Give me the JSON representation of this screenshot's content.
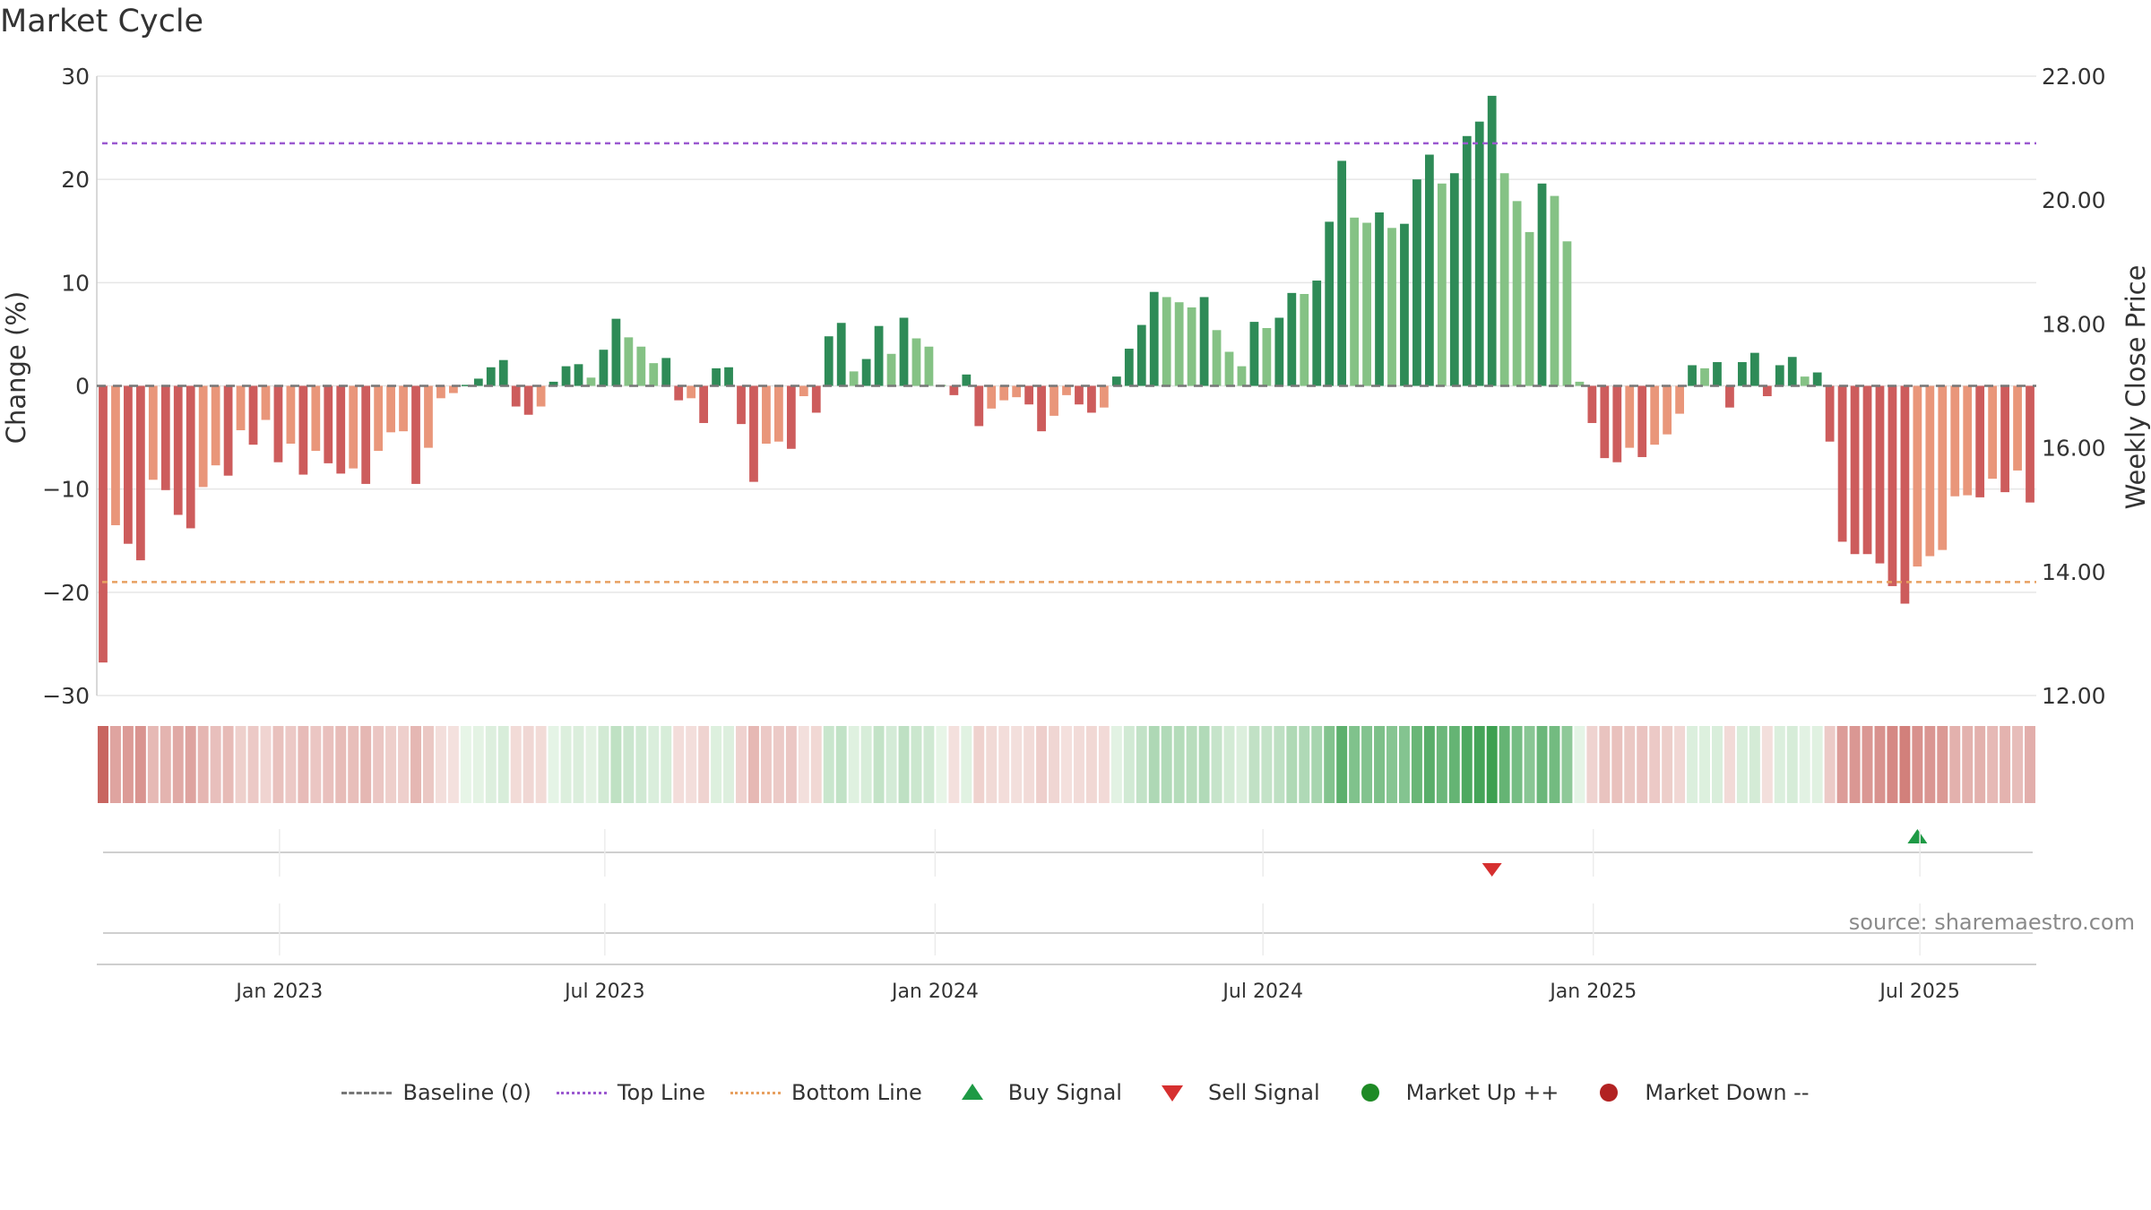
{
  "chart_data": {
    "type": "bar",
    "title": "Market Cycle",
    "ylabel": "Change (%)",
    "y2label": "Weekly Close Price",
    "ylim": [
      -30,
      30
    ],
    "y2lim": [
      12,
      22
    ],
    "yticks": [
      "30",
      "20",
      "10",
      "0",
      "−10",
      "−20",
      "−30"
    ],
    "y2ticks": [
      "22.00",
      "20.00",
      "18.00",
      "16.00",
      "14.00",
      "12.00"
    ],
    "xticks": [
      {
        "label": "Jan 2023",
        "index": 14.6
      },
      {
        "label": "Jul 2023",
        "index": 40.6
      },
      {
        "label": "Jan 2024",
        "index": 67.0
      },
      {
        "label": "Jul 2024",
        "index": 93.2
      },
      {
        "label": "Jan 2025",
        "index": 119.6
      },
      {
        "label": "Jul 2025",
        "index": 145.7
      }
    ],
    "top_line": 23.5,
    "bottom_line": -19.0,
    "values": [
      -26.8,
      -13.5,
      -15.3,
      -16.9,
      -9.1,
      -10.1,
      -12.5,
      -13.8,
      -9.8,
      -7.7,
      -8.7,
      -4.3,
      -5.7,
      -3.3,
      -7.4,
      -5.6,
      -8.6,
      -6.3,
      -7.5,
      -8.5,
      -8.0,
      -9.5,
      -6.3,
      -4.5,
      -4.4,
      -9.5,
      -6.0,
      -1.2,
      -0.7,
      0.1,
      0.7,
      1.8,
      2.5,
      -2.0,
      -2.8,
      -2.0,
      0.4,
      1.9,
      2.1,
      0.8,
      3.5,
      6.5,
      4.7,
      3.8,
      2.2,
      2.7,
      -1.4,
      -1.2,
      -3.6,
      1.7,
      1.8,
      -3.7,
      -9.3,
      -5.6,
      -5.4,
      -6.1,
      -1.0,
      -2.6,
      4.8,
      6.1,
      1.4,
      2.6,
      5.8,
      3.1,
      6.6,
      4.6,
      3.8,
      0.1,
      -0.9,
      1.1,
      -3.9,
      -2.2,
      -1.4,
      -1.1,
      -1.8,
      -4.4,
      -2.9,
      -0.9,
      -1.8,
      -2.6,
      -2.1,
      0.9,
      3.6,
      5.9,
      9.1,
      8.6,
      8.1,
      7.6,
      8.6,
      5.4,
      3.3,
      1.9,
      6.2,
      5.6,
      6.6,
      9.0,
      8.9,
      10.2,
      15.9,
      21.8,
      16.3,
      15.8,
      16.8,
      15.3,
      15.7,
      20.0,
      22.4,
      19.6,
      20.6,
      24.2,
      25.6,
      28.1,
      20.6,
      17.9,
      14.9,
      19.6,
      18.4,
      14.0,
      0.4,
      -3.6,
      -7.0,
      -7.4,
      -6.0,
      -6.9,
      -5.7,
      -4.7,
      -2.7,
      2.0,
      1.7,
      2.3,
      -2.1,
      2.3,
      3.2,
      -1.0,
      2.0,
      2.8,
      0.9,
      1.3,
      -5.4,
      -15.1,
      -16.3,
      -16.3,
      -17.2,
      -19.4,
      -21.1,
      -17.5,
      -16.5,
      -15.9,
      -10.7,
      -10.6,
      -10.8,
      -9.0,
      -10.3,
      -8.2,
      -11.3
    ],
    "heat_strip": "weekly momentum",
    "signals": [
      {
        "type": "sell",
        "index": 111
      },
      {
        "type": "buy",
        "index": 145
      }
    ],
    "colors": {
      "strong_up": "#2e8b57",
      "weak_up": "#85c285",
      "strong_down": "#cd5c5c",
      "weak_down": "#e9967a",
      "top_line": "#9b59d0",
      "bottom_line": "#e8a060",
      "buy": "#1e9a45",
      "sell": "#d62f2f",
      "market_up": "#1e8a25",
      "market_down": "#b22222"
    }
  },
  "legend": {
    "baseline": "Baseline (0)",
    "top_line": "Top Line",
    "bottom_line": "Bottom Line",
    "buy": "Buy Signal",
    "sell": "Sell Signal",
    "market_up": "Market Up ++",
    "market_down": "Market Down --"
  },
  "source": "source: sharemaestro.com"
}
